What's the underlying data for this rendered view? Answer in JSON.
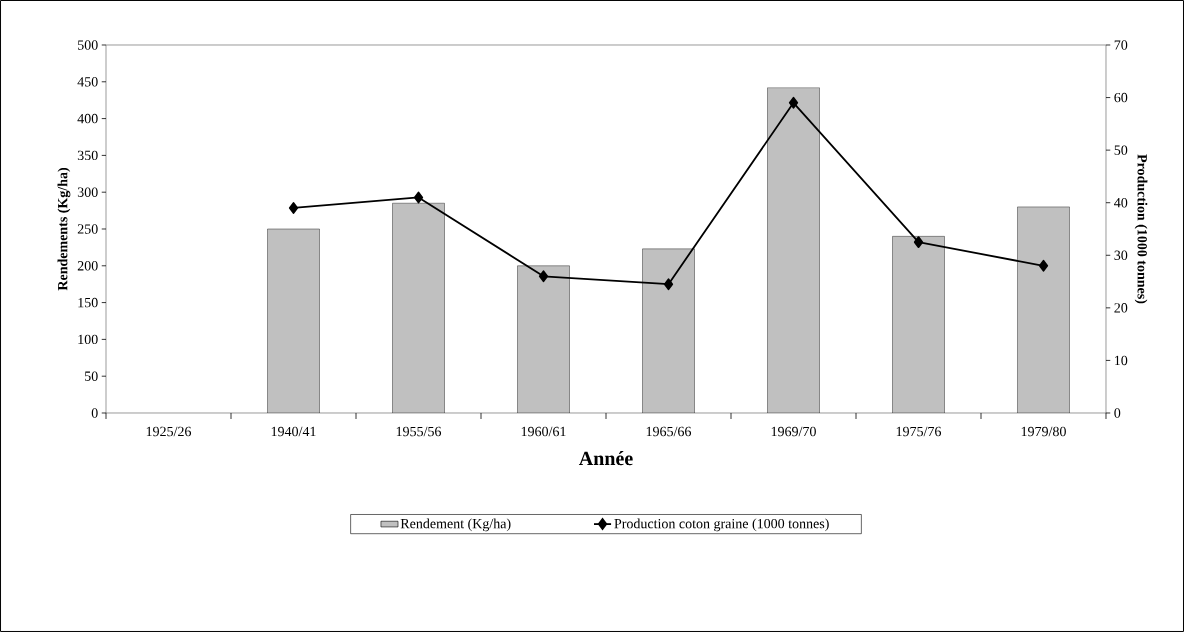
{
  "chart_data": {
    "type": "bar",
    "xlabel": "Année",
    "ylabel": "Rendements (Kg/ha)",
    "y2label": "Production (1000 tonnes)",
    "categories": [
      "1925/26",
      "1940/41",
      "1955/56",
      "1960/61",
      "1965/66",
      "1969/70",
      "1975/76",
      "1979/80"
    ],
    "series": [
      {
        "name": "Rendement (Kg/ha)",
        "color": "#c0c0c0",
        "values": [
          null,
          250,
          285,
          200,
          223,
          442,
          240,
          280
        ]
      },
      {
        "name": "Production coton graine (1000 tonnes)",
        "type": "line",
        "axis": "y2",
        "color": "#000000",
        "values": [
          null,
          39,
          41,
          26,
          24.5,
          59,
          32.5,
          28
        ]
      }
    ],
    "ylim": [
      0,
      500
    ],
    "yticks": [
      0,
      50,
      100,
      150,
      200,
      250,
      300,
      350,
      400,
      450,
      500
    ],
    "y2lim": [
      0,
      70
    ],
    "y2ticks": [
      0,
      10,
      20,
      30,
      40,
      50,
      60,
      70
    ],
    "legend": "bottom",
    "marker": "diamond",
    "line_style": "solid",
    "grid": false
  }
}
